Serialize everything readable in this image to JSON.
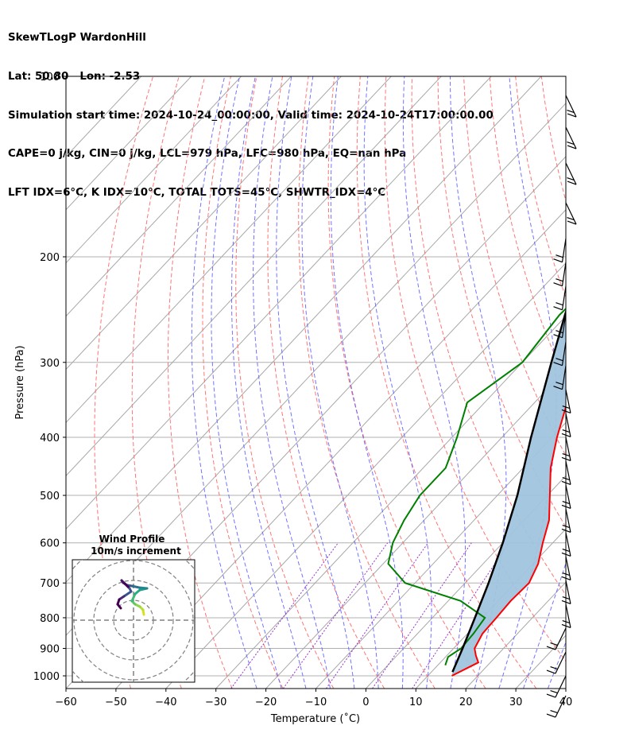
{
  "header": {
    "line1": "SkewTLogP WardonHill",
    "line2": "Lat: 50.80   Lon: -2.53",
    "line3": "Simulation start time: 2024-10-24_00:00:00, Valid time: 2024-10-24T17:00:00.00",
    "line4": "CAPE=0 j/kg, CIN=0 j/kg, LCL=979 hPa, LFC=980 hPa, EQ=nan hPa",
    "line5": "LFT IDX=6°C, K IDX=10°C, TOTAL TOTS=45°C, SHWTR_IDX=4°C"
  },
  "chart_data": {
    "type": "line",
    "subtype": "skew-t log-p diagram",
    "xlabel": "Temperature (˚C)",
    "ylabel": "Pressure (hPa)",
    "xlim": [
      -60,
      40
    ],
    "ylim_pressure": [
      1050,
      100
    ],
    "x_ticks": [
      -60,
      -50,
      -40,
      -30,
      -20,
      -10,
      0,
      10,
      20,
      30,
      40
    ],
    "y_ticks": [
      100,
      200,
      300,
      400,
      500,
      600,
      700,
      800,
      900,
      1000
    ],
    "y_tick_labels": [
      "100",
      "200",
      "300",
      "400",
      "500",
      "600",
      "700",
      "800",
      "900",
      "1000"
    ],
    "grid": true,
    "colors": {
      "temperature": "#ff0000",
      "dewpoint": "#008000",
      "parcel": "#000000",
      "shading": "#a0c4de",
      "dry_adiabat": "#ff6666",
      "moist_adiabat": "#5a5aff",
      "mixing_ratio": "#9933cc",
      "isotherm": "#999999"
    },
    "series": [
      {
        "key": "temperature",
        "points": [
          [
            1000,
            14.8
          ],
          [
            950,
            17.6
          ],
          [
            925,
            15.8
          ],
          [
            900,
            14.2
          ],
          [
            850,
            13.0
          ],
          [
            800,
            12.8
          ],
          [
            750,
            12.5
          ],
          [
            700,
            12.8
          ],
          [
            650,
            11.0
          ],
          [
            600,
            8.0
          ],
          [
            550,
            5.0
          ],
          [
            500,
            0.5
          ],
          [
            450,
            -4.5
          ],
          [
            400,
            -9.0
          ],
          [
            350,
            -13.5
          ],
          [
            300,
            -18.5
          ],
          [
            250,
            -24.0
          ],
          [
            225,
            -28.5
          ],
          [
            200,
            -31.5
          ],
          [
            175,
            -33.5
          ],
          [
            150,
            -36.5
          ],
          [
            125,
            -39.5
          ],
          [
            110,
            -40.0
          ],
          [
            100,
            -40.0
          ]
        ]
      },
      {
        "key": "dewpoint",
        "points": [
          [
            960,
            11.5
          ],
          [
            930,
            10.5
          ],
          [
            900,
            11.5
          ],
          [
            850,
            11.2
          ],
          [
            800,
            10.5
          ],
          [
            750,
            2.5
          ],
          [
            700,
            -12.0
          ],
          [
            650,
            -19.0
          ],
          [
            600,
            -22.0
          ],
          [
            550,
            -24.0
          ],
          [
            500,
            -25.5
          ],
          [
            450,
            -25.5
          ],
          [
            400,
            -29.0
          ],
          [
            350,
            -33.5
          ],
          [
            300,
            -30.0
          ],
          [
            250,
            -31.5
          ],
          [
            225,
            -31.0
          ],
          [
            200,
            -32.0
          ],
          [
            175,
            -38.0
          ],
          [
            160,
            -42.0
          ],
          [
            125,
            -41.5
          ],
          [
            100,
            -40.0
          ]
        ]
      },
      {
        "key": "parcel",
        "points": [
          [
            985,
            14.2
          ],
          [
            900,
            11.8
          ],
          [
            800,
            8.5
          ],
          [
            700,
            4.7
          ],
          [
            600,
            0.0
          ],
          [
            500,
            -6.0
          ],
          [
            400,
            -14.2
          ],
          [
            300,
            -24.2
          ],
          [
            250,
            -30.4
          ],
          [
            200,
            -37.5
          ],
          [
            150,
            -48.0
          ],
          [
            100,
            -63.5
          ]
        ]
      }
    ],
    "wind_barbs_shown": true,
    "inset": {
      "title": "Wind Profile",
      "subtitle": "10m/s increment",
      "rings": 4
    }
  }
}
